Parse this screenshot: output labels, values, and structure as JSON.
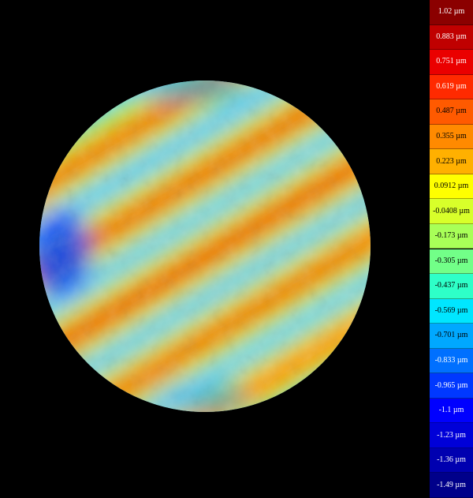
{
  "chart_data": {
    "type": "heatmap",
    "title": "",
    "xlabel": "",
    "ylabel": "",
    "units": "µm",
    "value_range": [
      -1.49,
      1.02
    ],
    "feature": {
      "shape": "circular aperture",
      "pattern": "diagonal stripes (upper-right to lower-left)",
      "stripe_angle_deg": 30,
      "visible_high_bands": 5
    },
    "colorbar": {
      "placement": "right",
      "labels": [
        "1.02 µm",
        "0.883 µm",
        "0.751 µm",
        "0.619 µm",
        "0.487 µm",
        "0.355 µm",
        "0.223 µm",
        "0.0912 µm",
        "-0.0408 µm",
        "-0.173 µm",
        "-0.305 µm",
        "-0.437 µm",
        "-0.569 µm",
        "-0.701 µm",
        "-0.833 µm",
        "-0.965 µm",
        "-1.1 µm",
        "-1.23 µm",
        "-1.36 µm",
        "-1.49 µm"
      ],
      "colors": [
        "#8b0000",
        "#c00000",
        "#ea0000",
        "#ff2a00",
        "#ff5a00",
        "#ff8a00",
        "#ffb000",
        "#ffff00",
        "#d8ff2a",
        "#a8ff58",
        "#72ff88",
        "#2effc8",
        "#00e6ff",
        "#00a8ff",
        "#0070ff",
        "#0038ff",
        "#0000ff",
        "#0000d8",
        "#0000b0",
        "#00008a"
      ],
      "text_colors": [
        "#ffffff",
        "#ffffff",
        "#ffffff",
        "#ffffff",
        "#000000",
        "#000000",
        "#000000",
        "#000000",
        "#000000",
        "#000000",
        "#000000",
        "#000000",
        "#000000",
        "#000000",
        "#ffffff",
        "#ffffff",
        "#ffffff",
        "#ffffff",
        "#ffffff",
        "#ffffff"
      ]
    }
  }
}
